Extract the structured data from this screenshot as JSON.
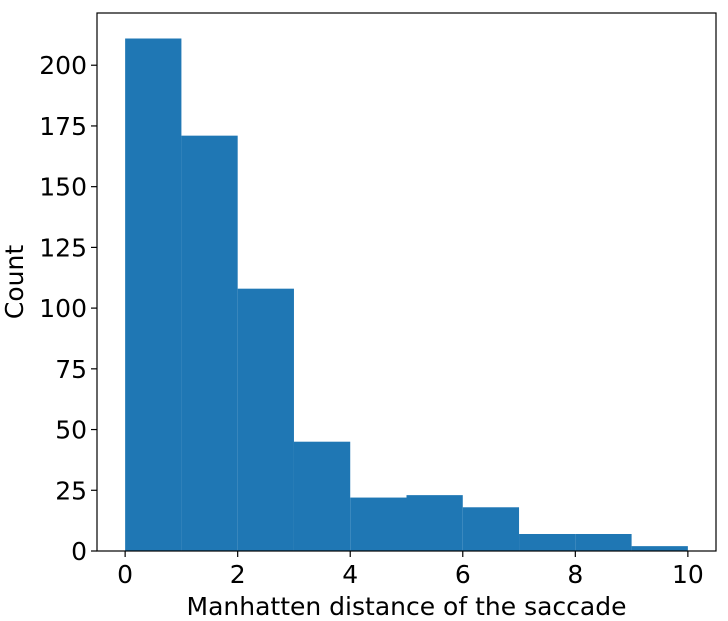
{
  "chart_data": {
    "type": "bar",
    "title": "",
    "xlabel": "Manhatten distance of the saccade",
    "ylabel": "Count",
    "bins": [
      [
        0,
        1
      ],
      [
        1,
        2
      ],
      [
        2,
        3
      ],
      [
        3,
        4
      ],
      [
        4,
        5
      ],
      [
        5,
        6
      ],
      [
        6,
        7
      ],
      [
        7,
        8
      ],
      [
        8,
        9
      ],
      [
        9,
        10
      ]
    ],
    "values": [
      211,
      171,
      108,
      45,
      22,
      23,
      18,
      7,
      7,
      2
    ],
    "xlim": [
      -0.5,
      10.5
    ],
    "ylim": [
      0,
      221.5
    ],
    "xticks": [
      0,
      2,
      4,
      6,
      8,
      10
    ],
    "yticks": [
      0,
      25,
      50,
      75,
      100,
      125,
      150,
      175,
      200
    ],
    "bar_color": "#1f77b4",
    "grid": false,
    "legend": "none"
  }
}
